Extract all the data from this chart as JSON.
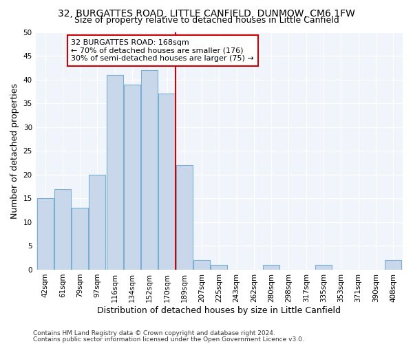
{
  "title": "32, BURGATTES ROAD, LITTLE CANFIELD, DUNMOW, CM6 1FW",
  "subtitle": "Size of property relative to detached houses in Little Canfield",
  "xlabel": "Distribution of detached houses by size in Little Canfield",
  "ylabel": "Number of detached properties",
  "categories": [
    "42sqm",
    "61sqm",
    "79sqm",
    "97sqm",
    "116sqm",
    "134sqm",
    "152sqm",
    "170sqm",
    "189sqm",
    "207sqm",
    "225sqm",
    "243sqm",
    "262sqm",
    "280sqm",
    "298sqm",
    "317sqm",
    "335sqm",
    "353sqm",
    "371sqm",
    "390sqm",
    "408sqm"
  ],
  "values": [
    15,
    17,
    13,
    20,
    41,
    39,
    42,
    37,
    22,
    2,
    1,
    0,
    0,
    1,
    0,
    0,
    1,
    0,
    0,
    0,
    2
  ],
  "bar_color": "#c8d8ea",
  "bar_edge_color": "#7aafd4",
  "red_line_index": 7,
  "red_line_color": "#cc0000",
  "annotation_text": "32 BURGATTES ROAD: 168sqm\n← 70% of detached houses are smaller (176)\n30% of semi-detached houses are larger (75) →",
  "annotation_box_facecolor": "#ffffff",
  "annotation_border_color": "#cc0000",
  "ylim": [
    0,
    50
  ],
  "yticks": [
    0,
    5,
    10,
    15,
    20,
    25,
    30,
    35,
    40,
    45,
    50
  ],
  "footnote1": "Contains HM Land Registry data © Crown copyright and database right 2024.",
  "footnote2": "Contains public sector information licensed under the Open Government Licence v3.0.",
  "background_color": "#ffffff",
  "plot_bg_color": "#f0f4fb",
  "grid_color": "#ffffff",
  "title_fontsize": 10,
  "subtitle_fontsize": 9,
  "axis_label_fontsize": 9,
  "tick_fontsize": 7.5,
  "annotation_fontsize": 8,
  "footnote_fontsize": 6.5
}
